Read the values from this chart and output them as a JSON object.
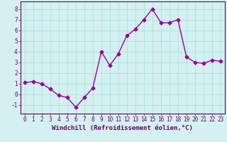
{
  "x": [
    0,
    1,
    2,
    3,
    4,
    5,
    6,
    7,
    8,
    9,
    10,
    11,
    12,
    13,
    14,
    15,
    16,
    17,
    18,
    19,
    20,
    21,
    22,
    23
  ],
  "y": [
    1.1,
    1.2,
    1.0,
    0.5,
    -0.1,
    -0.3,
    -1.2,
    -0.3,
    0.6,
    4.0,
    2.7,
    3.8,
    5.5,
    6.1,
    7.0,
    8.0,
    6.7,
    6.7,
    7.0,
    3.5,
    3.0,
    2.9,
    3.2,
    3.1
  ],
  "line_color": "#990099",
  "marker": "D",
  "marker_size": 2.5,
  "background_color": "#d4f0f0",
  "grid_color": "#aadddd",
  "xlabel": "Windchill (Refroidissement éolien,°C)",
  "xlabel_fontsize": 6.5,
  "ylim": [
    -1.8,
    8.7
  ],
  "xlim": [
    -0.5,
    23.5
  ],
  "yticks": [
    -1,
    0,
    1,
    2,
    3,
    4,
    5,
    6,
    7,
    8
  ],
  "xticks": [
    0,
    1,
    2,
    3,
    4,
    5,
    6,
    7,
    8,
    9,
    10,
    11,
    12,
    13,
    14,
    15,
    16,
    17,
    18,
    19,
    20,
    21,
    22,
    23
  ],
  "tick_fontsize": 5.5,
  "line_width": 1.0,
  "axis_color": "#660066",
  "spine_color": "#660066"
}
